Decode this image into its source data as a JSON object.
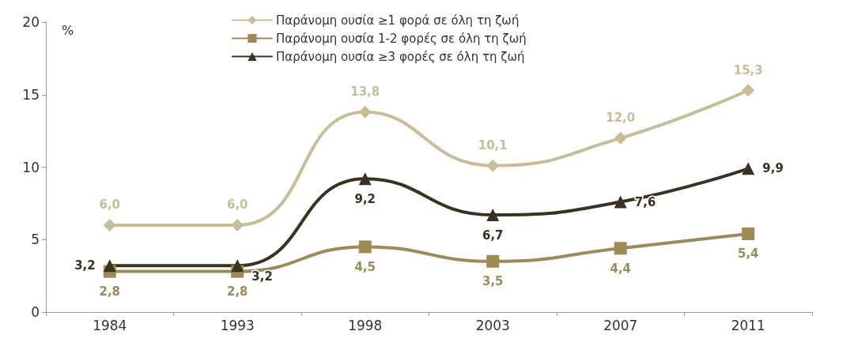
{
  "chart_data": {
    "type": "line",
    "ylabel": "%",
    "categories": [
      "1984",
      "1993",
      "1998",
      "2003",
      "2007",
      "2011"
    ],
    "series": [
      {
        "name": "Παράνομη ουσία ≥1 φορά σε όλη τη ζωή",
        "color": "#c9bd97",
        "marker": "diamond",
        "values": [
          6.0,
          6.0,
          13.8,
          10.1,
          12.0,
          15.3
        ],
        "value_labels": [
          "6,0",
          "6,0",
          "13,8",
          "10,1",
          "12,0",
          "15,3"
        ]
      },
      {
        "name": "Παράνομη ουσία 1-2 φορές σε όλη τη ζωή",
        "color": "#9c8b57",
        "marker": "square",
        "values": [
          2.8,
          2.8,
          4.5,
          3.5,
          4.4,
          5.4
        ],
        "value_labels": [
          "2,8",
          "2,8",
          "4,5",
          "3,5",
          "4,4",
          "5,4"
        ]
      },
      {
        "name": "Παράνομη ουσία ≥3 φορές σε όλη τη ζωή",
        "color": "#3b3120",
        "marker": "triangle",
        "values": [
          3.2,
          3.2,
          9.2,
          6.7,
          7.6,
          9.9
        ],
        "value_labels": [
          "3,2",
          "3,2",
          "9,2",
          "6,7",
          "7,6",
          "9,9"
        ]
      }
    ],
    "ylim": [
      0,
      20
    ],
    "yticks": [
      0,
      5,
      10,
      15,
      20
    ],
    "grid": false,
    "legend": "top",
    "line_style": "solid"
  }
}
